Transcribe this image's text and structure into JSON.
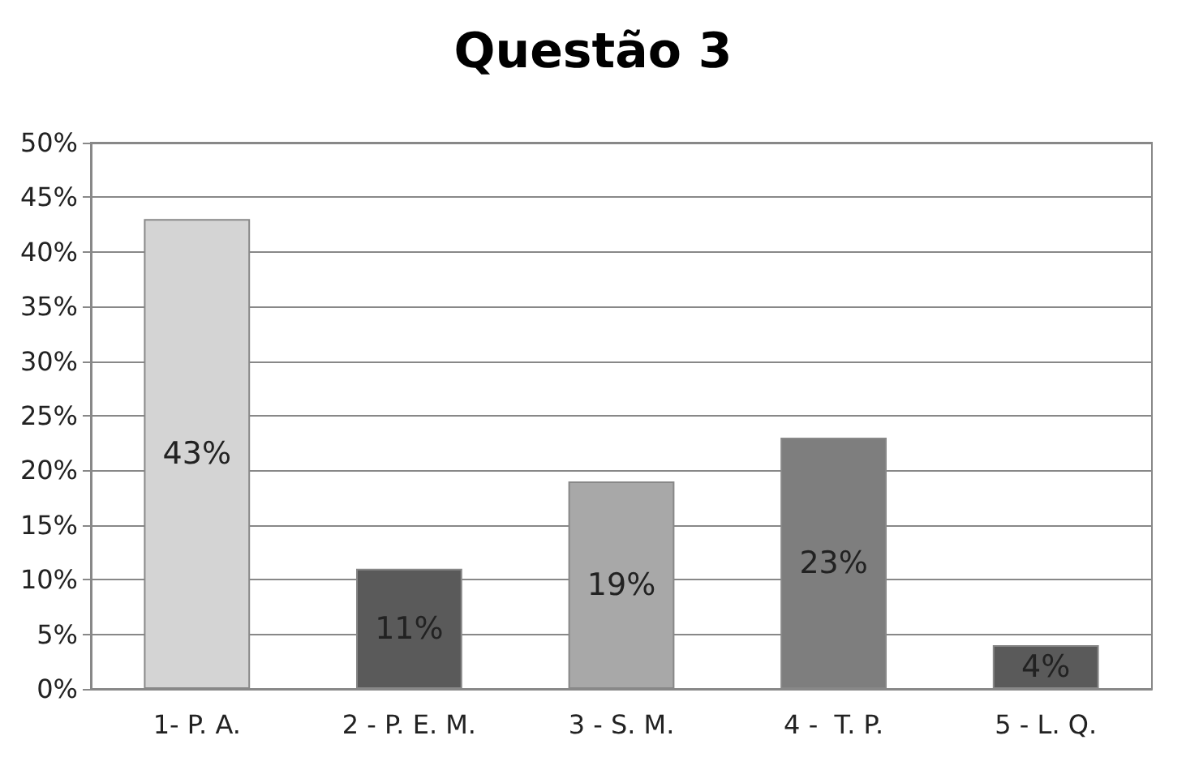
{
  "chart_data": {
    "type": "bar",
    "title": "Questão 3",
    "categories": [
      "1- P. A.",
      "2 - P. E. M.",
      "3 - S. M.",
      "4 -  T. P.",
      "5 - L. Q."
    ],
    "values": [
      43,
      11,
      19,
      23,
      4
    ],
    "colors": [
      "#d4d4d4",
      "#5a5a5a",
      "#a8a8a8",
      "#7e7e7e",
      "#5a5a5a"
    ],
    "value_labels": [
      "43%",
      "11%",
      "19%",
      "23%",
      "4%"
    ],
    "ylim": [
      0,
      50
    ],
    "yticks": [
      {
        "value": 0,
        "label": "0%"
      },
      {
        "value": 5,
        "label": "5%"
      },
      {
        "value": 10,
        "label": "10%"
      },
      {
        "value": 15,
        "label": "15%"
      },
      {
        "value": 20,
        "label": "20%"
      },
      {
        "value": 25,
        "label": "25%"
      },
      {
        "value": 30,
        "label": "30%"
      },
      {
        "value": 35,
        "label": "35%"
      },
      {
        "value": 40,
        "label": "40%"
      },
      {
        "value": 45,
        "label": "45%"
      },
      {
        "value": 50,
        "label": "50%"
      }
    ],
    "grid": "y"
  }
}
